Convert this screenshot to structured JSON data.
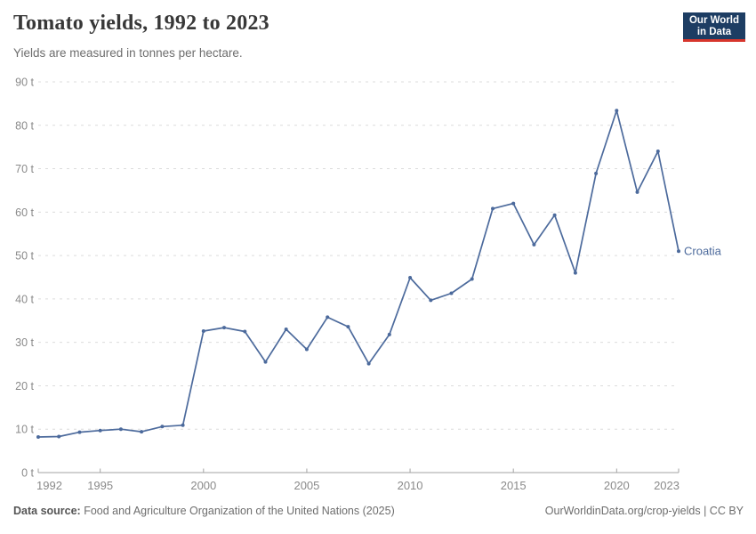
{
  "header": {
    "title": "Tomato yields, 1992 to 2023",
    "subtitle": "Yields are measured in tonnes per hectare.",
    "logo": {
      "line1": "Our World",
      "line2": "in Data"
    }
  },
  "footer": {
    "source_label": "Data source:",
    "source_text": "Food and Agriculture Organization of the United Nations (2025)",
    "credit": "OurWorldinData.org/crop-yields | CC BY"
  },
  "colors": {
    "line": "#4C6A9C",
    "series_label": "#4C6A9C",
    "grid": "#dcdcdc",
    "axis": "#a3a3a3",
    "tick_label": "#8a8a8a",
    "logo_bg": "#1d3d63",
    "logo_accent": "#d7352c"
  },
  "chart_data": {
    "type": "line",
    "title": "Tomato yields, 1992 to 2023",
    "subtitle": "Yields are measured in tonnes per hectare.",
    "ylabel": "tonnes per hectare",
    "unit": "t",
    "grid": true,
    "legend_position": "end-of-line",
    "xlim": [
      1992,
      2023
    ],
    "ylim": [
      0,
      90
    ],
    "y_ticks": [
      0,
      10,
      20,
      30,
      40,
      50,
      60,
      70,
      80,
      90
    ],
    "y_tick_labels": [
      "0 t",
      "10 t",
      "20 t",
      "30 t",
      "40 t",
      "50 t",
      "60 t",
      "70 t",
      "80 t",
      "90 t"
    ],
    "x_ticks": [
      1992,
      1995,
      2000,
      2005,
      2010,
      2015,
      2020,
      2023
    ],
    "x_tick_labels": [
      "1992",
      "1995",
      "2000",
      "2005",
      "2010",
      "2015",
      "2020",
      "2023"
    ],
    "series": [
      {
        "name": "Croatia",
        "x": [
          1992,
          1993,
          1994,
          1995,
          1996,
          1997,
          1998,
          1999,
          2000,
          2001,
          2002,
          2003,
          2004,
          2005,
          2006,
          2007,
          2008,
          2009,
          2010,
          2011,
          2012,
          2013,
          2014,
          2015,
          2016,
          2017,
          2018,
          2019,
          2020,
          2021,
          2022,
          2023
        ],
        "values": [
          8.2,
          8.3,
          9.3,
          9.7,
          10.0,
          9.4,
          10.6,
          10.9,
          32.6,
          33.4,
          32.5,
          25.5,
          33.0,
          28.4,
          35.8,
          33.6,
          25.1,
          31.8,
          44.9,
          39.7,
          41.3,
          44.6,
          60.8,
          62.0,
          52.5,
          59.3,
          46.0,
          68.9,
          83.4,
          64.6,
          74.0,
          51.0
        ]
      }
    ]
  }
}
